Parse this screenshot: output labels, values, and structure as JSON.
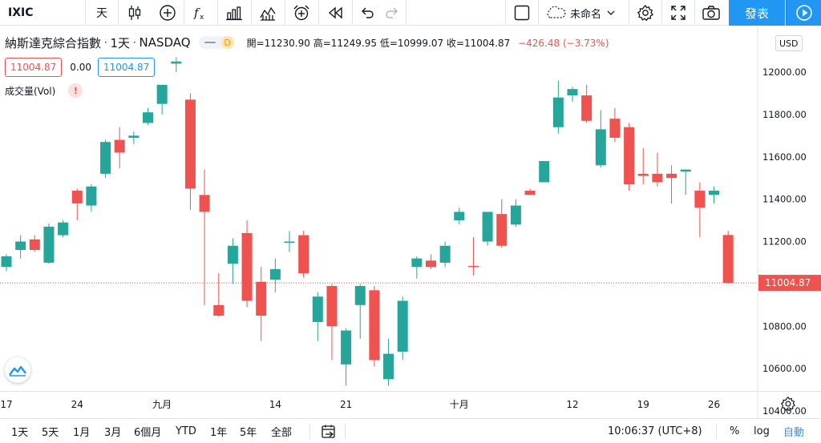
{
  "toolbar": {
    "symbol": "IXIC",
    "interval": "天",
    "layout_name": "未命名",
    "publish_label": "發表"
  },
  "legend": {
    "name": "納斯達克綜合指數",
    "interval": "1天",
    "exchange": "NASDAQ",
    "delayed_letter": "D",
    "ohlc_text": "開=11230.90 高=11249.95 低=10999.07 收=11004.87",
    "change_text": "−426.48 (−3.73%)"
  },
  "price_boxes": {
    "sell": "11004.87",
    "spread": "0.00",
    "buy": "11004.87"
  },
  "volume": {
    "label": "成交量(Vol)",
    "warning": "!"
  },
  "currency": "USD",
  "bottom": {
    "ranges": [
      "1天",
      "5天",
      "1月",
      "3月",
      "6個月",
      "YTD",
      "1年",
      "5年",
      "全部"
    ],
    "time": "10:06:37 (UTC+8)",
    "percent": "%",
    "log": "log",
    "auto": "自動"
  },
  "colors": {
    "up": "#26a69a",
    "down": "#ef5350",
    "accent": "#2196f3"
  },
  "chart_data": {
    "type": "candlestick",
    "symbol": "IXIC",
    "title": "納斯達克綜合指數",
    "ylim": [
      10400,
      12140
    ],
    "y_ticks": [
      10400,
      10600,
      10800,
      11000,
      11200,
      11400,
      11600,
      11800,
      12000
    ],
    "x_ticks": [
      {
        "index": 0,
        "label": "17"
      },
      {
        "index": 5,
        "label": "24"
      },
      {
        "index": 11,
        "label": "九月"
      },
      {
        "index": 19,
        "label": "14"
      },
      {
        "index": 24,
        "label": "21"
      },
      {
        "index": 32,
        "label": "十月"
      },
      {
        "index": 40,
        "label": "12"
      },
      {
        "index": 45,
        "label": "19"
      },
      {
        "index": 50,
        "label": "26"
      }
    ],
    "last_price": 11004.87,
    "candles": [
      {
        "o": 11080,
        "h": 11140,
        "l": 11060,
        "c": 11130
      },
      {
        "o": 11160,
        "h": 11230,
        "l": 11120,
        "c": 11200
      },
      {
        "o": 11210,
        "h": 11230,
        "l": 11150,
        "c": 11160
      },
      {
        "o": 11100,
        "h": 11285,
        "l": 11095,
        "c": 11270
      },
      {
        "o": 11230,
        "h": 11300,
        "l": 11220,
        "c": 11290
      },
      {
        "o": 11440,
        "h": 11450,
        "l": 11300,
        "c": 11380
      },
      {
        "o": 11370,
        "h": 11470,
        "l": 11340,
        "c": 11460
      },
      {
        "o": 11520,
        "h": 11680,
        "l": 11500,
        "c": 11670
      },
      {
        "o": 11680,
        "h": 11740,
        "l": 11545,
        "c": 11620
      },
      {
        "o": 11690,
        "h": 11720,
        "l": 11660,
        "c": 11700
      },
      {
        "o": 11760,
        "h": 11830,
        "l": 11750,
        "c": 11810
      },
      {
        "o": 11850,
        "h": 11940,
        "l": 11800,
        "c": 11940
      },
      {
        "o": 12040,
        "h": 12070,
        "l": 12000,
        "c": 12050
      },
      {
        "o": 11870,
        "h": 11900,
        "l": 11350,
        "c": 11450
      },
      {
        "o": 11420,
        "h": 11540,
        "l": 10900,
        "c": 11340
      },
      {
        "o": 10900,
        "h": 11050,
        "l": 10845,
        "c": 10850
      },
      {
        "o": 11095,
        "h": 11215,
        "l": 11000,
        "c": 11180
      },
      {
        "o": 11240,
        "h": 11300,
        "l": 10890,
        "c": 10920
      },
      {
        "o": 11010,
        "h": 11080,
        "l": 10730,
        "c": 10850
      },
      {
        "o": 11020,
        "h": 11120,
        "l": 10960,
        "c": 11070
      },
      {
        "o": 11200,
        "h": 11250,
        "l": 11150,
        "c": 11200
      },
      {
        "o": 11230,
        "h": 11250,
        "l": 11030,
        "c": 11050
      },
      {
        "o": 10820,
        "h": 10960,
        "l": 10730,
        "c": 10940
      },
      {
        "o": 10990,
        "h": 11000,
        "l": 10640,
        "c": 10800
      },
      {
        "o": 10620,
        "h": 10790,
        "l": 10520,
        "c": 10780
      },
      {
        "o": 10900,
        "h": 11000,
        "l": 10740,
        "c": 10990
      },
      {
        "o": 10970,
        "h": 10990,
        "l": 10610,
        "c": 10640
      },
      {
        "o": 10550,
        "h": 10740,
        "l": 10520,
        "c": 10670
      },
      {
        "o": 10680,
        "h": 10940,
        "l": 10640,
        "c": 10920
      },
      {
        "o": 11080,
        "h": 11130,
        "l": 11025,
        "c": 11120
      },
      {
        "o": 11110,
        "h": 11140,
        "l": 11070,
        "c": 11080
      },
      {
        "o": 11100,
        "h": 11200,
        "l": 11080,
        "c": 11180
      },
      {
        "o": 11300,
        "h": 11360,
        "l": 11280,
        "c": 11340
      },
      {
        "o": 11085,
        "h": 11220,
        "l": 11040,
        "c": 11080
      },
      {
        "o": 11200,
        "h": 11340,
        "l": 11180,
        "c": 11340
      },
      {
        "o": 11330,
        "h": 11400,
        "l": 11170,
        "c": 11180
      },
      {
        "o": 11280,
        "h": 11400,
        "l": 11270,
        "c": 11370
      },
      {
        "o": 11440,
        "h": 11450,
        "l": 11420,
        "c": 11420
      },
      {
        "o": 11480,
        "h": 11580,
        "l": 11480,
        "c": 11580
      },
      {
        "o": 11740,
        "h": 11960,
        "l": 11710,
        "c": 11880
      },
      {
        "o": 11890,
        "h": 11930,
        "l": 11860,
        "c": 11920
      },
      {
        "o": 11890,
        "h": 11940,
        "l": 11760,
        "c": 11770
      },
      {
        "o": 11560,
        "h": 11820,
        "l": 11550,
        "c": 11730
      },
      {
        "o": 11780,
        "h": 11830,
        "l": 11670,
        "c": 11690
      },
      {
        "o": 11740,
        "h": 11760,
        "l": 11440,
        "c": 11470
      },
      {
        "o": 11520,
        "h": 11640,
        "l": 11470,
        "c": 11510
      },
      {
        "o": 11520,
        "h": 11620,
        "l": 11460,
        "c": 11480
      },
      {
        "o": 11520,
        "h": 11560,
        "l": 11380,
        "c": 11500
      },
      {
        "o": 11530,
        "h": 11540,
        "l": 11420,
        "c": 11540
      },
      {
        "o": 11440,
        "h": 11480,
        "l": 11220,
        "c": 11360
      },
      {
        "o": 11420,
        "h": 11460,
        "l": 11380,
        "c": 11440
      },
      {
        "o": 11230.9,
        "h": 11249.95,
        "l": 10999.07,
        "c": 11004.87
      }
    ]
  }
}
